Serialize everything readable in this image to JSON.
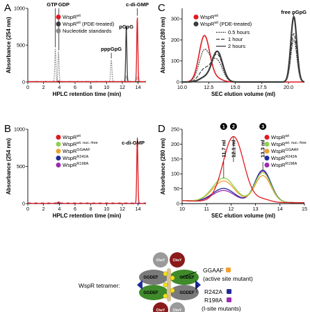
{
  "panels": {
    "A": {
      "letter": "A",
      "legend": [
        "WspR",
        "WspR",
        "Nucleotide standards"
      ],
      "legend_sup": [
        "wt",
        "wt",
        ""
      ],
      "legend_suffix": [
        "",
        " (PDE-treated)",
        ""
      ],
      "legend_colors": [
        "#e0191e",
        "#3c3c3c",
        "#8a8a8a"
      ],
      "peaks": [
        "GTP",
        "GDP",
        "pppGpG",
        "pGpG",
        "c-di-GMP"
      ]
    },
    "B": {
      "letter": "B",
      "legend": [
        "WspR",
        "WspR",
        "WspR",
        "WspR",
        "WspR"
      ],
      "legend_sup": [
        "wt",
        "wt. nuc.-free",
        "GGAAF",
        "R242A",
        "R198A"
      ],
      "legend_colors": [
        "#e0191e",
        "#8fd14f",
        "#f0a030",
        "#1e2a9a",
        "#9a2ab0"
      ],
      "peaks": [
        "c-di-GMP"
      ]
    },
    "C": {
      "letter": "C",
      "legend": [
        "WspR",
        "WspR",
        "0.5 hours",
        "1 hour",
        "2 hours"
      ],
      "legend_sup": [
        "wt",
        "wt",
        "",
        "",
        ""
      ],
      "legend_suffix": [
        "",
        " (PDE-treated)",
        "",
        "",
        ""
      ],
      "legend_colors": [
        "#e0191e",
        "#3c3c3c",
        "#3c3c3c",
        "#3c3c3c",
        "#3c3c3c"
      ],
      "peaks": [
        "free pGpG"
      ]
    },
    "D": {
      "letter": "D",
      "legend": [
        "WspR",
        "WspR",
        "WspR",
        "WspR",
        "WspR"
      ],
      "legend_sup": [
        "wt",
        "wt. nuc.-free",
        "GGAAF",
        "R242A",
        "R198A"
      ],
      "legend_colors": [
        "#e0191e",
        "#8fd14f",
        "#f0a030",
        "#1e2a9a",
        "#9a2ab0"
      ],
      "markers": [
        {
          "n": "1",
          "label": "11.7 ml",
          "x": 11.7
        },
        {
          "n": "2",
          "label": "12.1 ml",
          "x": 12.1
        },
        {
          "n": "3",
          "label": "13.3 ml",
          "x": 13.3
        }
      ]
    }
  },
  "diagram": {
    "title": "WspR tetramer:",
    "domain_label": "GGDEF",
    "cheY_label": "CheY",
    "mutants": [
      {
        "name": "GGAAF",
        "desc": "(active site mutant)",
        "color": "#f0a030"
      },
      {
        "name": "R242A",
        "desc": "",
        "color": "#1e2a9a"
      },
      {
        "name": "R198A",
        "desc": "(I-site mutants)",
        "color": "#9a2ab0"
      }
    ]
  },
  "chart_data": [
    {
      "panel": "A",
      "type": "line",
      "xlabel": "HPLC retention time (min)",
      "ylabel": "Absorbance (254 nm)",
      "xlim": [
        0,
        15
      ],
      "ylim": [
        0,
        1000
      ],
      "xticks": [
        0,
        2,
        4,
        6,
        8,
        10,
        12,
        14
      ],
      "yticks": [
        0,
        500,
        1000
      ],
      "series": [
        {
          "name": "WspR wt",
          "peaks": [
            {
              "x": 13.9,
              "y": 880
            },
            {
              "x": 3.9,
              "y": 10
            }
          ]
        },
        {
          "name": "WspR wt (PDE-treated)",
          "peaks": [
            {
              "x": 12.5,
              "y": 740
            },
            {
              "x": 3.9,
              "y": 8
            }
          ]
        },
        {
          "name": "Nucleotide standards",
          "peaks": [
            {
              "x": 3.5,
              "y": 450
            },
            {
              "x": 3.9,
              "y": 410
            },
            {
              "x": 10.6,
              "y": 300
            },
            {
              "x": 12.5,
              "y": 80
            },
            {
              "x": 13.9,
              "y": 60
            }
          ]
        }
      ]
    },
    {
      "panel": "B",
      "type": "line",
      "xlabel": "HPLC retention time (min)",
      "ylabel": "Absorbance (254 nm)",
      "xlim": [
        0,
        15
      ],
      "ylim": [
        0,
        1000
      ],
      "xticks": [
        0,
        2,
        4,
        6,
        8,
        10,
        12,
        14
      ],
      "yticks": [
        0,
        500,
        1000
      ],
      "series": [
        {
          "name": "WspR wt",
          "peaks": [
            {
              "x": 13.9,
              "y": 870
            },
            {
              "x": 3.9,
              "y": 20
            }
          ]
        },
        {
          "name": "WspR wt. nuc.-free",
          "peaks": [
            {
              "x": 3.9,
              "y": 10
            }
          ]
        },
        {
          "name": "WspR GGAAF",
          "peaks": [
            {
              "x": 3.9,
              "y": 10
            }
          ]
        },
        {
          "name": "WspR R242A",
          "peaks": [
            {
              "x": 3.9,
              "y": 10
            }
          ]
        },
        {
          "name": "WspR R198A",
          "peaks": [
            {
              "x": 3.9,
              "y": 10
            }
          ]
        }
      ]
    },
    {
      "panel": "C",
      "type": "line",
      "xlabel": "SEC elution volume (ml)",
      "ylabel": "Absorbance (280 nm)",
      "xlim": [
        10,
        21.5
      ],
      "ylim": [
        0,
        350
      ],
      "xticks": [
        10.0,
        12.5,
        15.0,
        17.5,
        20.0
      ],
      "yticks": [
        0,
        100,
        200,
        300
      ],
      "series": [
        {
          "name": "WspR wt",
          "peaks": [
            {
              "x": 12.1,
              "y": 220
            },
            {
              "x": 13.3,
              "y": 15
            }
          ]
        },
        {
          "name": "0.5 hours",
          "peaks": [
            {
              "x": 12.1,
              "y": 150
            },
            {
              "x": 13.3,
              "y": 100
            },
            {
              "x": 20.5,
              "y": 200
            }
          ]
        },
        {
          "name": "1 hour",
          "peaks": [
            {
              "x": 12.1,
              "y": 60
            },
            {
              "x": 13.3,
              "y": 130
            },
            {
              "x": 20.5,
              "y": 230
            }
          ]
        },
        {
          "name": "2 hours",
          "peaks": [
            {
              "x": 12.1,
              "y": 20
            },
            {
              "x": 13.3,
              "y": 145
            },
            {
              "x": 20.5,
              "y": 310
            }
          ]
        }
      ]
    },
    {
      "panel": "D",
      "type": "line",
      "xlabel": "SEC elution volume (ml)",
      "ylabel": "Absorbance (280 nm)",
      "xlim": [
        10,
        15
      ],
      "ylim": [
        0,
        250
      ],
      "xticks": [
        10,
        11,
        12,
        13,
        14,
        15
      ],
      "yticks": [
        0,
        50,
        100,
        150,
        200,
        250
      ],
      "series": [
        {
          "name": "WspR wt",
          "peaks": [
            {
              "x": 12.1,
              "y": 220
            },
            {
              "x": 13.3,
              "y": 10
            }
          ]
        },
        {
          "name": "WspR wt. nuc.-free",
          "peaks": [
            {
              "x": 11.7,
              "y": 80
            },
            {
              "x": 13.3,
              "y": 100
            }
          ]
        },
        {
          "name": "WspR GGAAF",
          "peaks": [
            {
              "x": 11.7,
              "y": 70
            },
            {
              "x": 13.3,
              "y": 90
            }
          ]
        },
        {
          "name": "WspR R242A",
          "peaks": [
            {
              "x": 11.7,
              "y": 45
            },
            {
              "x": 13.3,
              "y": 108
            }
          ]
        },
        {
          "name": "WspR R198A",
          "peaks": [
            {
              "x": 11.7,
              "y": 38
            },
            {
              "x": 13.3,
              "y": 105
            }
          ]
        }
      ]
    }
  ]
}
